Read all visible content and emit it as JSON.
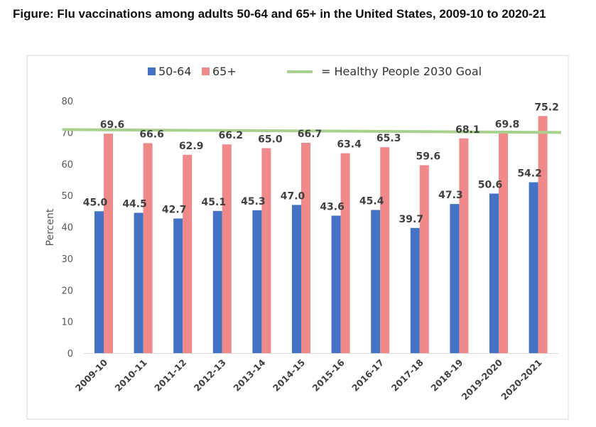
{
  "chart_data": {
    "type": "bar",
    "title": "Figure: Flu vaccinations among adults 50-64 and 65+ in the United States, 2009-10 to 2020-21",
    "ylabel": "Percent",
    "xlabel": "",
    "ylim": [
      0,
      80
    ],
    "yticks": [
      0,
      10,
      20,
      30,
      40,
      50,
      60,
      70,
      80
    ],
    "grid": false,
    "legend_position": "top",
    "categories": [
      "2009-10",
      "2010-11",
      "2011-12",
      "2012-13",
      "2013-14",
      "2014-15",
      "2015-16",
      "2016-17",
      "2017-18",
      "2018-19",
      "2019-2020",
      "2020-2021"
    ],
    "series": [
      {
        "name": "50-64",
        "color": "#4472C4",
        "values": [
          45.0,
          44.5,
          42.7,
          45.1,
          45.3,
          47.0,
          43.6,
          45.4,
          39.7,
          47.3,
          50.6,
          54.2
        ]
      },
      {
        "name": "65+",
        "color": "#F08A8A",
        "values": [
          69.6,
          66.6,
          62.9,
          66.2,
          65.0,
          66.7,
          63.4,
          65.3,
          59.6,
          68.1,
          69.8,
          75.2
        ]
      }
    ],
    "reference_line": {
      "label": "= Healthy People 2030 Goal",
      "value": 70,
      "color": "#A9D18E"
    }
  }
}
